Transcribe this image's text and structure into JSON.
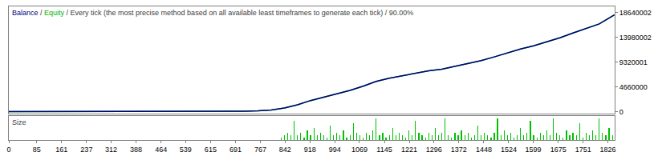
{
  "chart_data": [
    {
      "type": "line",
      "title": "Balance / Equity / Every tick (the most precise method based on all available least timeframes to generate each tick) / 90.00%",
      "x": [
        0,
        40,
        80,
        120,
        160,
        200,
        240,
        280,
        320,
        360,
        400,
        440,
        480,
        520,
        560,
        600,
        640,
        680,
        720,
        760,
        800,
        840,
        880,
        920,
        960,
        1000,
        1040,
        1080,
        1120,
        1160,
        1200,
        1240,
        1280,
        1320,
        1360,
        1400,
        1440,
        1480,
        1520,
        1560,
        1600,
        1640,
        1680,
        1720,
        1760,
        1800,
        1846
      ],
      "series": [
        {
          "name": "Balance",
          "color": "#000080",
          "values": [
            10000,
            10400,
            10900,
            11500,
            12300,
            13100,
            14200,
            15500,
            17100,
            19200,
            21800,
            25000,
            29500,
            35000,
            42000,
            52000,
            65000,
            82000,
            105000,
            160000,
            300000,
            700000,
            1300000,
            2100000,
            2750000,
            3350000,
            4000000,
            4800000,
            5700000,
            6300000,
            6800000,
            7300000,
            7700000,
            8000000,
            8500000,
            9000000,
            9600000,
            10300000,
            11100000,
            11800000,
            12400000,
            13100000,
            13900000,
            14800000,
            15600000,
            16500000,
            18200000
          ]
        },
        {
          "name": "Equity",
          "color": "#00b000",
          "values": [
            10000,
            10400,
            10900,
            11500,
            12300,
            13100,
            14200,
            15500,
            17100,
            19200,
            21800,
            25000,
            29500,
            35000,
            42000,
            52000,
            65000,
            82000,
            105000,
            160000,
            300000,
            700000,
            1300000,
            2100000,
            2750000,
            3350000,
            4000000,
            4800000,
            5700000,
            6300000,
            6800000,
            7300000,
            7700000,
            8000000,
            8500000,
            9000000,
            9600000,
            10300000,
            11100000,
            11800000,
            12400000,
            13100000,
            13900000,
            14800000,
            15600000,
            16500000,
            18200000
          ]
        }
      ],
      "xlim": [
        0,
        1847
      ],
      "ylim": [
        -300000,
        19800000
      ],
      "yticks": [
        0,
        4660000,
        9320001,
        13980002,
        18640002
      ],
      "grid": false,
      "tick_labels": "y"
    },
    {
      "type": "bar",
      "title": "Size",
      "x": [
        830,
        840,
        850,
        860,
        870,
        880,
        890,
        900,
        910,
        920,
        930,
        940,
        950,
        960,
        970,
        980,
        990,
        1000,
        1010,
        1020,
        1030,
        1040,
        1050,
        1060,
        1070,
        1080,
        1090,
        1100,
        1110,
        1120,
        1130,
        1140,
        1150,
        1160,
        1170,
        1180,
        1190,
        1200,
        1210,
        1220,
        1230,
        1240,
        1250,
        1260,
        1270,
        1280,
        1290,
        1300,
        1310,
        1320,
        1330,
        1340,
        1350,
        1360,
        1370,
        1380,
        1390,
        1400,
        1410,
        1420,
        1430,
        1440,
        1450,
        1460,
        1470,
        1480,
        1490,
        1500,
        1510,
        1520,
        1530,
        1540,
        1550,
        1560,
        1570,
        1580,
        1590,
        1600,
        1610,
        1620,
        1630,
        1640,
        1650,
        1660,
        1670,
        1680,
        1690,
        1700,
        1710,
        1720,
        1730,
        1740,
        1750,
        1760,
        1770,
        1780,
        1790,
        1800,
        1810,
        1820,
        1830,
        1840
      ],
      "values": [
        1,
        2,
        3,
        2,
        8,
        2,
        3,
        1,
        4,
        2,
        5,
        2,
        3,
        2,
        1,
        6,
        2,
        3,
        2,
        4,
        1,
        2,
        7,
        3,
        2,
        1,
        3,
        2,
        4,
        9,
        2,
        3,
        1,
        2,
        5,
        2,
        3,
        2,
        1,
        4,
        2,
        8,
        3,
        2,
        1,
        3,
        2,
        5,
        2,
        3,
        9,
        2,
        1,
        3,
        2,
        4,
        2,
        3,
        1,
        2,
        6,
        2,
        3,
        2,
        1,
        3,
        9,
        2,
        4,
        2,
        3,
        1,
        2,
        5,
        2,
        3,
        8,
        2,
        1,
        3,
        2,
        4,
        2,
        9,
        3,
        2,
        1,
        4,
        2,
        3,
        2,
        7,
        1,
        3,
        2,
        4,
        2,
        9,
        3,
        2,
        5,
        2
      ],
      "color": "#00c000",
      "xlim": [
        0,
        1847
      ],
      "ylim": [
        0,
        10
      ],
      "xticks": [
        0,
        85,
        161,
        237,
        312,
        388,
        464,
        539,
        615,
        691,
        767,
        842,
        918,
        994,
        1069,
        1145,
        1221,
        1296,
        1372,
        1448,
        1524,
        1599,
        1675,
        1751,
        1826
      ],
      "grid": false,
      "tick_labels": "x"
    }
  ]
}
